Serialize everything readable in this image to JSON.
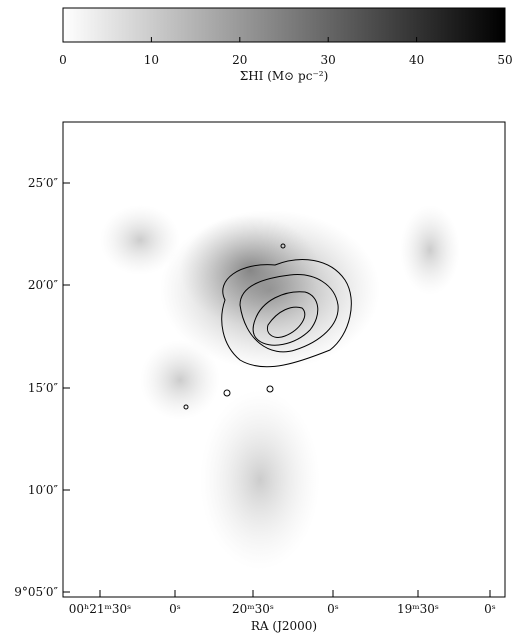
{
  "chart_data": {
    "type": "colorbar",
    "xlim": [
      0,
      50
    ],
    "xticks": [
      0,
      10,
      20,
      30,
      40,
      50
    ],
    "xlabel": "ΣHI (M⊙ pc⁻²)"
  },
  "map": {
    "yticks": [
      "25′0″",
      "20′0″",
      "15′0″",
      "10′0″",
      "9°05′0″"
    ],
    "xticks": [
      "00ʰ21ᵐ30ˢ",
      "0ˢ",
      "20ᵐ30ˢ",
      "0ˢ",
      "19ᵐ30ˢ",
      "0ˢ"
    ],
    "xlabel": "RA (J2000)"
  }
}
